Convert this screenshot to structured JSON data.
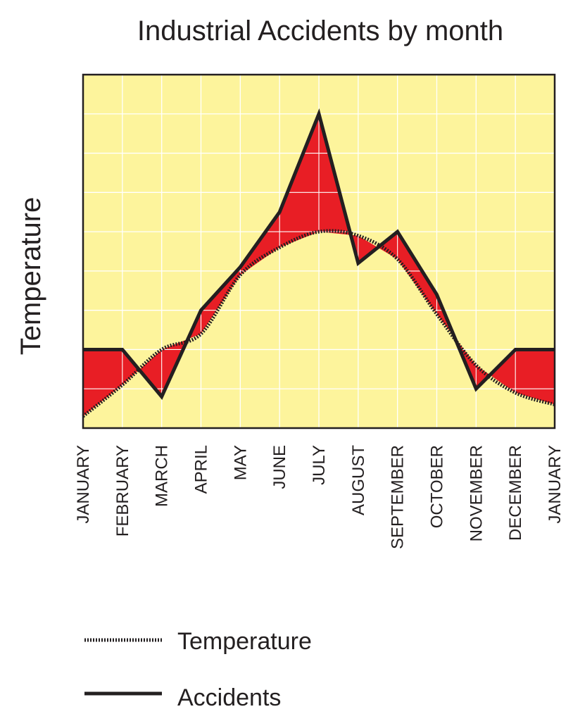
{
  "chart_data": {
    "type": "line",
    "title": "Industrial Accidents by month",
    "xlabel": "",
    "ylabel": "Temperature",
    "categories": [
      "JANUARY",
      "FEBRUARY",
      "MARCH",
      "APRIL",
      "MAY",
      "JUNE",
      "JULY",
      "AUGUST",
      "SEPTEMBER",
      "OCTOBER",
      "NOVEMBER",
      "DECEMBER",
      "JANUARY"
    ],
    "ylim": [
      0,
      9
    ],
    "grid": true,
    "legend_position": "bottom-left",
    "series": [
      {
        "name": "Temperature",
        "style": "dotted",
        "values": [
          0.3,
          1.1,
          2.0,
          2.4,
          3.9,
          4.6,
          5.0,
          4.9,
          4.3,
          2.9,
          1.6,
          0.9,
          0.6
        ]
      },
      {
        "name": "Accidents",
        "style": "solid",
        "values": [
          2.0,
          2.0,
          0.8,
          3.0,
          4.1,
          5.5,
          8.0,
          4.2,
          5.0,
          3.4,
          1.0,
          2.0,
          2.0
        ]
      }
    ],
    "colors": {
      "background": "#fdf49c",
      "fill": "#e81e25",
      "line": "#231f20",
      "grid": "#ffffff"
    }
  }
}
